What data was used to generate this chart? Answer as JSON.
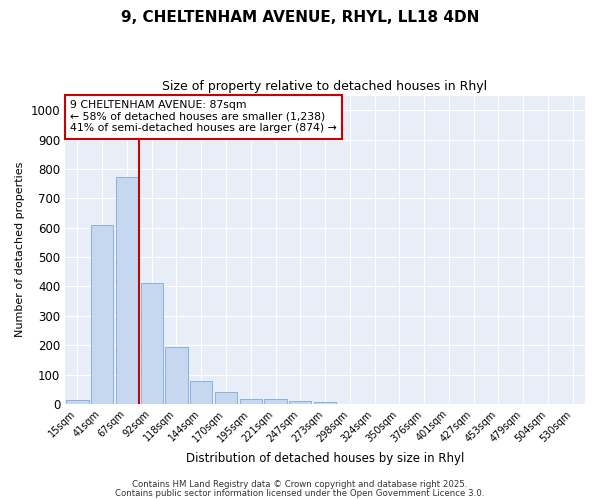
{
  "title_line1": "9, CHELTENHAM AVENUE, RHYL, LL18 4DN",
  "title_line2": "Size of property relative to detached houses in Rhyl",
  "xlabel": "Distribution of detached houses by size in Rhyl",
  "ylabel": "Number of detached properties",
  "categories": [
    "15sqm",
    "41sqm",
    "67sqm",
    "92sqm",
    "118sqm",
    "144sqm",
    "170sqm",
    "195sqm",
    "221sqm",
    "247sqm",
    "273sqm",
    "298sqm",
    "324sqm",
    "350sqm",
    "376sqm",
    "401sqm",
    "427sqm",
    "453sqm",
    "479sqm",
    "504sqm",
    "530sqm"
  ],
  "values": [
    12,
    608,
    773,
    412,
    193,
    78,
    40,
    17,
    15,
    10,
    8,
    0,
    0,
    0,
    0,
    0,
    0,
    0,
    0,
    0,
    0
  ],
  "bar_color": "#c5d8f0",
  "bar_edge_color": "#7aabda",
  "vline_x": 2.5,
  "vline_color": "#cc0000",
  "annotation_text": "9 CHELTENHAM AVENUE: 87sqm\n← 58% of detached houses are smaller (1,238)\n41% of semi-detached houses are larger (874) →",
  "annotation_box_color": "white",
  "annotation_box_edge": "#cc0000",
  "ylim": [
    0,
    1050
  ],
  "yticks": [
    0,
    100,
    200,
    300,
    400,
    500,
    600,
    700,
    800,
    900,
    1000
  ],
  "plot_bg_color": "#e8eef8",
  "fig_bg_color": "#ffffff",
  "grid_color": "#ffffff",
  "footer_line1": "Contains HM Land Registry data © Crown copyright and database right 2025.",
  "footer_line2": "Contains public sector information licensed under the Open Government Licence 3.0."
}
